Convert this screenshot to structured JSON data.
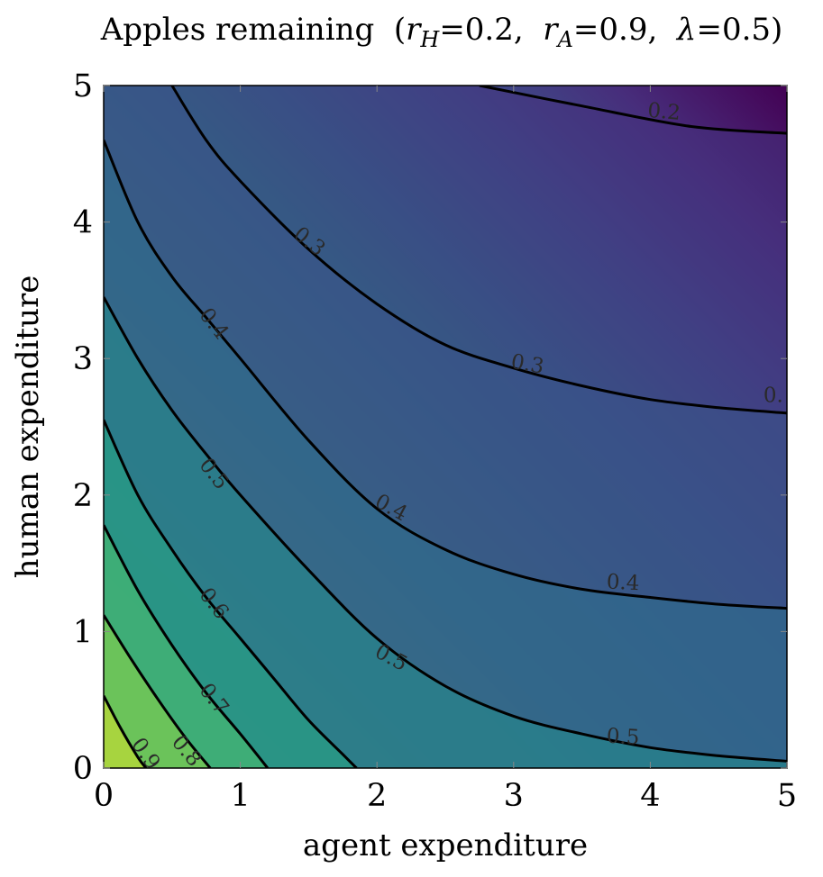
{
  "chart_data": {
    "type": "heatmap",
    "title": "Apples remaining (r_H=0.2, r_A=0.9, λ=0.5)",
    "title_parts": {
      "prefix": "Apples remaining  (",
      "r": "r",
      "sub_h": "H",
      "eq_h": "=0.2,  ",
      "sub_a": "A",
      "eq_a": "=0.9,  ",
      "lambda": "λ",
      "eq_l": "=0.5)"
    },
    "xlabel": "agent expenditure",
    "ylabel": "human expenditure",
    "xlim": [
      0,
      5
    ],
    "ylim": [
      0,
      5
    ],
    "xticks": [
      "0",
      "1",
      "2",
      "3",
      "4",
      "5"
    ],
    "yticks": [
      "0",
      "1",
      "2",
      "3",
      "4",
      "5"
    ],
    "colormap": [
      "#440154",
      "#472d7b",
      "#3b528b",
      "#2c728e",
      "#21918c",
      "#28ae80",
      "#5ec962",
      "#addc30",
      "#fde725"
    ],
    "value_range": [
      0.13,
      1.0
    ],
    "contours": [
      {
        "level": 0.2,
        "label": "0.2",
        "points": [
          [
            2.75,
            5.0
          ],
          [
            3.5,
            4.85
          ],
          [
            4.3,
            4.7
          ],
          [
            5.0,
            4.65
          ]
        ]
      },
      {
        "level": 0.3,
        "label": "0.3",
        "points": [
          [
            0.5,
            5.0
          ],
          [
            0.75,
            4.6
          ],
          [
            1.0,
            4.3
          ],
          [
            1.5,
            3.8
          ],
          [
            2.0,
            3.4
          ],
          [
            2.5,
            3.1
          ],
          [
            3.0,
            2.93
          ],
          [
            3.5,
            2.8
          ],
          [
            4.0,
            2.7
          ],
          [
            4.5,
            2.64
          ],
          [
            5.0,
            2.6
          ]
        ]
      },
      {
        "level": 0.4,
        "label": "0.4",
        "points": [
          [
            0.0,
            4.6
          ],
          [
            0.25,
            4.0
          ],
          [
            0.5,
            3.6
          ],
          [
            0.75,
            3.3
          ],
          [
            1.0,
            3.0
          ],
          [
            1.5,
            2.4
          ],
          [
            2.0,
            1.9
          ],
          [
            2.5,
            1.6
          ],
          [
            3.0,
            1.42
          ],
          [
            3.5,
            1.31
          ],
          [
            4.0,
            1.25
          ],
          [
            4.5,
            1.2
          ],
          [
            5.0,
            1.17
          ]
        ]
      },
      {
        "level": 0.5,
        "label": "0.5",
        "points": [
          [
            0.0,
            3.45
          ],
          [
            0.25,
            3.0
          ],
          [
            0.5,
            2.62
          ],
          [
            0.75,
            2.3
          ],
          [
            1.0,
            2.0
          ],
          [
            1.5,
            1.45
          ],
          [
            2.0,
            0.95
          ],
          [
            2.5,
            0.6
          ],
          [
            3.0,
            0.38
          ],
          [
            3.5,
            0.25
          ],
          [
            4.0,
            0.15
          ],
          [
            4.5,
            0.09
          ],
          [
            5.0,
            0.05
          ]
        ]
      },
      {
        "level": 0.6,
        "label": "0.6",
        "points": [
          [
            0.0,
            2.55
          ],
          [
            0.25,
            2.0
          ],
          [
            0.5,
            1.6
          ],
          [
            0.75,
            1.25
          ],
          [
            1.0,
            0.95
          ],
          [
            1.25,
            0.65
          ],
          [
            1.5,
            0.35
          ],
          [
            1.75,
            0.1
          ],
          [
            1.85,
            0.0
          ]
        ]
      },
      {
        "level": 0.7,
        "label": "0.7",
        "points": [
          [
            0.0,
            1.78
          ],
          [
            0.25,
            1.3
          ],
          [
            0.5,
            0.9
          ],
          [
            0.75,
            0.55
          ],
          [
            1.0,
            0.25
          ],
          [
            1.2,
            0.0
          ]
        ]
      },
      {
        "level": 0.8,
        "label": "0.8",
        "points": [
          [
            0.0,
            1.12
          ],
          [
            0.2,
            0.8
          ],
          [
            0.4,
            0.5
          ],
          [
            0.6,
            0.22
          ],
          [
            0.78,
            0.0
          ]
        ]
      },
      {
        "level": 0.9,
        "label": "0.9",
        "points": [
          [
            0.0,
            0.53
          ],
          [
            0.12,
            0.3
          ],
          [
            0.25,
            0.08
          ],
          [
            0.31,
            0.0
          ]
        ]
      }
    ],
    "contour_labels": [
      {
        "text": "0.2",
        "x": 4.1,
        "y": 4.8,
        "angle": 5
      },
      {
        "text": "0.3",
        "x": 1.5,
        "y": 3.85,
        "angle": 38
      },
      {
        "text": "0.3",
        "x": 3.1,
        "y": 2.95,
        "angle": 10
      },
      {
        "text": "0.",
        "x": 4.9,
        "y": 2.72,
        "angle": 0
      },
      {
        "text": "0.4",
        "x": 0.8,
        "y": 3.25,
        "angle": 52
      },
      {
        "text": "0.4",
        "x": 2.1,
        "y": 1.9,
        "angle": 28
      },
      {
        "text": "0.4",
        "x": 3.8,
        "y": 1.35,
        "angle": 3
      },
      {
        "text": "0.5",
        "x": 0.8,
        "y": 2.15,
        "angle": 52
      },
      {
        "text": "0.5",
        "x": 2.1,
        "y": 0.8,
        "angle": 28
      },
      {
        "text": "0.5",
        "x": 3.8,
        "y": 0.22,
        "angle": 3
      },
      {
        "text": "0.6",
        "x": 0.8,
        "y": 1.2,
        "angle": 52
      },
      {
        "text": "0.7",
        "x": 0.8,
        "y": 0.5,
        "angle": 52
      },
      {
        "text": "0.8",
        "x": 0.6,
        "y": 0.12,
        "angle": 50
      },
      {
        "text": "0.9",
        "x": 0.3,
        "y": 0.1,
        "angle": 55
      }
    ]
  }
}
